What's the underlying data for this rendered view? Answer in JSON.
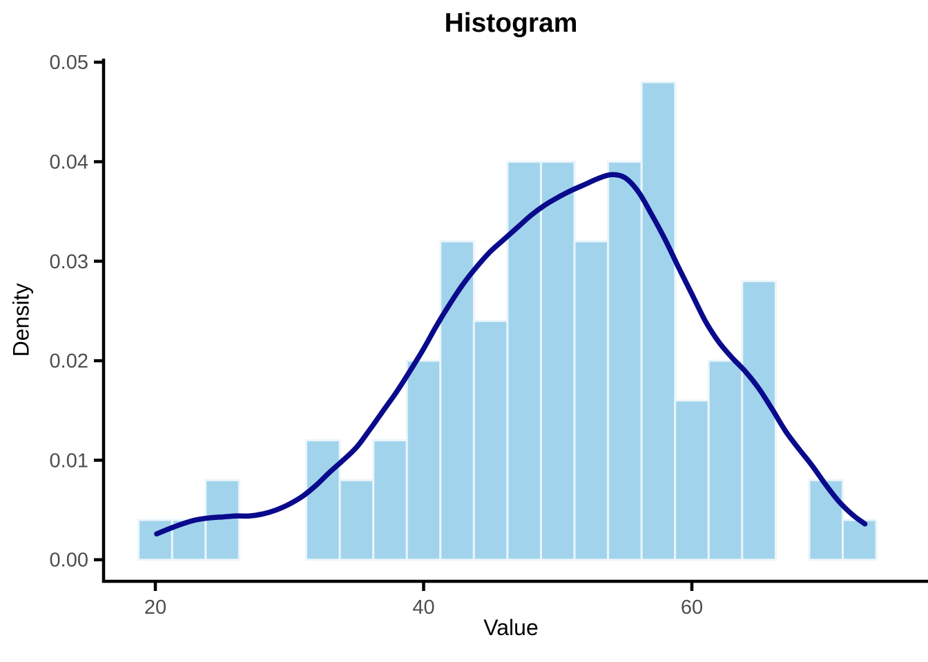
{
  "chart_data": {
    "type": "bar",
    "subtype": "histogram-with-density-curve",
    "title": "Histogram",
    "xlabel": "Value",
    "ylabel": "Density",
    "x_ticks": [
      20,
      40,
      60
    ],
    "y_ticks": [
      0.0,
      0.01,
      0.02,
      0.03,
      0.04,
      0.05
    ],
    "y_tick_labels": [
      "0.00",
      "0.01",
      "0.02",
      "0.03",
      "0.04",
      "0.05"
    ],
    "xlim": [
      16.1,
      77.6
    ],
    "ylim": [
      0,
      0.0504
    ],
    "grid": "off",
    "legend": "none",
    "binwidth": 2.5,
    "bin_centers": [
      20,
      22.5,
      25,
      27.5,
      30,
      32.5,
      35,
      37.5,
      40,
      42.5,
      45,
      47.5,
      50,
      52.5,
      55,
      57.5,
      60,
      62.5,
      65,
      67.5,
      70,
      72.5
    ],
    "bin_densities": [
      0.004,
      0.004,
      0.008,
      0,
      0,
      0.012,
      0.008,
      0.012,
      0.02,
      0.032,
      0.024,
      0.04,
      0.04,
      0.032,
      0.04,
      0.048,
      0.016,
      0.02,
      0.028,
      0,
      0.008,
      0.004
    ],
    "density_curve": {
      "x": [
        20.1,
        21,
        22,
        23,
        24,
        25,
        26,
        27,
        28,
        29,
        30,
        31,
        32,
        33,
        34,
        35,
        36,
        37,
        38,
        39,
        40,
        41,
        42,
        43,
        44,
        45,
        46,
        47,
        48,
        49,
        50,
        51,
        52,
        53,
        54,
        55,
        56,
        57,
        58,
        59,
        60,
        61,
        62,
        63,
        64,
        65,
        66,
        67,
        68,
        69,
        70,
        71,
        72,
        72.9
      ],
      "y": [
        0.0026,
        0.0031,
        0.0036,
        0.004,
        0.0042,
        0.0043,
        0.0044,
        0.0044,
        0.0046,
        0.005,
        0.0056,
        0.0064,
        0.0075,
        0.0088,
        0.01,
        0.0113,
        0.0131,
        0.015,
        0.0169,
        0.019,
        0.0212,
        0.0236,
        0.0258,
        0.0278,
        0.0295,
        0.031,
        0.0322,
        0.0334,
        0.0346,
        0.0356,
        0.0364,
        0.0371,
        0.0377,
        0.0383,
        0.0387,
        0.0384,
        0.037,
        0.0347,
        0.0322,
        0.0294,
        0.0267,
        0.024,
        0.0219,
        0.0203,
        0.0189,
        0.0172,
        0.0151,
        0.0129,
        0.0111,
        0.0094,
        0.0075,
        0.0058,
        0.0045,
        0.0036
      ]
    },
    "colors": {
      "bar_fill": "#A1D4EC",
      "bar_border": "#EAF5FB",
      "curve": "#0A0A8C",
      "axis": "#000000",
      "tick_label": "#4D4D4D",
      "background": "#FFFFFF"
    }
  }
}
